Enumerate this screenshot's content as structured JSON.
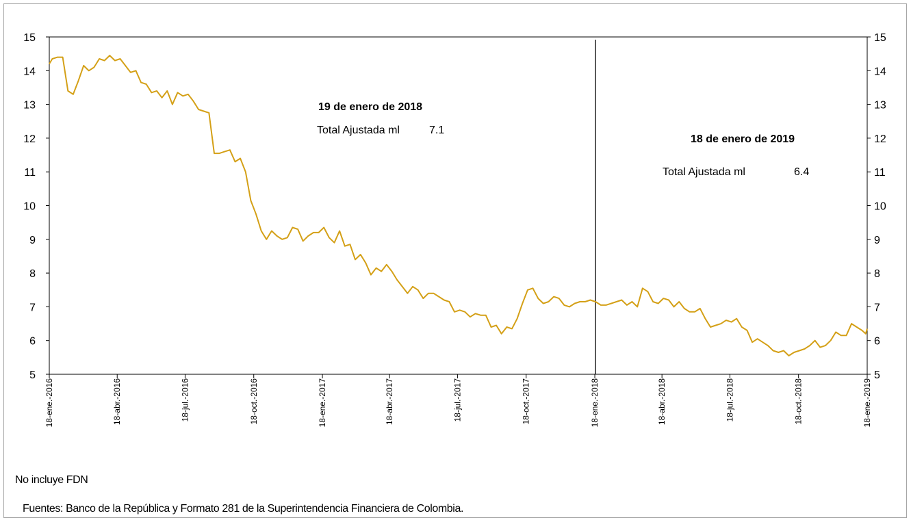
{
  "chart_data": {
    "type": "line",
    "ylim": [
      5,
      15
    ],
    "y_ticks": [
      5,
      6,
      7,
      8,
      9,
      10,
      11,
      12,
      13,
      14,
      15
    ],
    "x_start": "2016-01-18",
    "x_end": "2019-01-18",
    "x_tick_dates": [
      "2016-01-18",
      "2016-04-18",
      "2016-07-18",
      "2016-10-18",
      "2017-01-18",
      "2017-04-18",
      "2017-07-18",
      "2017-10-18",
      "2018-01-18",
      "2018-04-18",
      "2018-07-18",
      "2018-10-18",
      "2019-01-18"
    ],
    "x_tick_labels": [
      "18-ene.-2016",
      "18-abr.-2016",
      "18-jul.-2016",
      "18-oct.-2016",
      "18-ene.-2017",
      "18-abr.-2017",
      "18-jul.-2017",
      "18-oct.-2017",
      "18-ene.-2018",
      "18-abr.-2018",
      "18-jul.-2018",
      "18-oct.-2018",
      "18-ene.-2019"
    ],
    "line_color": "#d4a017",
    "grid": false,
    "series": [
      {
        "points": [
          [
            "2016-01-18",
            14.2
          ],
          [
            "2016-01-22",
            14.35
          ],
          [
            "2016-01-29",
            14.4
          ],
          [
            "2016-02-05",
            14.4
          ],
          [
            "2016-02-12",
            13.4
          ],
          [
            "2016-02-19",
            13.3
          ],
          [
            "2016-02-26",
            13.7
          ],
          [
            "2016-03-04",
            14.15
          ],
          [
            "2016-03-11",
            14.0
          ],
          [
            "2016-03-18",
            14.1
          ],
          [
            "2016-03-25",
            14.35
          ],
          [
            "2016-04-01",
            14.3
          ],
          [
            "2016-04-08",
            14.45
          ],
          [
            "2016-04-15",
            14.3
          ],
          [
            "2016-04-22",
            14.35
          ],
          [
            "2016-04-29",
            14.15
          ],
          [
            "2016-05-06",
            13.95
          ],
          [
            "2016-05-13",
            14.0
          ],
          [
            "2016-05-20",
            13.65
          ],
          [
            "2016-05-27",
            13.6
          ],
          [
            "2016-06-03",
            13.35
          ],
          [
            "2016-06-10",
            13.4
          ],
          [
            "2016-06-17",
            13.2
          ],
          [
            "2016-06-24",
            13.4
          ],
          [
            "2016-07-01",
            13.0
          ],
          [
            "2016-07-08",
            13.35
          ],
          [
            "2016-07-15",
            13.25
          ],
          [
            "2016-07-22",
            13.3
          ],
          [
            "2016-07-29",
            13.1
          ],
          [
            "2016-08-05",
            12.85
          ],
          [
            "2016-08-12",
            12.8
          ],
          [
            "2016-08-19",
            12.75
          ],
          [
            "2016-08-26",
            11.55
          ],
          [
            "2016-09-02",
            11.55
          ],
          [
            "2016-09-09",
            11.6
          ],
          [
            "2016-09-16",
            11.65
          ],
          [
            "2016-09-23",
            11.3
          ],
          [
            "2016-09-30",
            11.4
          ],
          [
            "2016-10-07",
            11.0
          ],
          [
            "2016-10-14",
            10.15
          ],
          [
            "2016-10-21",
            9.75
          ],
          [
            "2016-10-28",
            9.25
          ],
          [
            "2016-11-04",
            9.0
          ],
          [
            "2016-11-11",
            9.25
          ],
          [
            "2016-11-18",
            9.1
          ],
          [
            "2016-11-25",
            9.0
          ],
          [
            "2016-12-02",
            9.05
          ],
          [
            "2016-12-09",
            9.35
          ],
          [
            "2016-12-16",
            9.3
          ],
          [
            "2016-12-23",
            8.95
          ],
          [
            "2016-12-30",
            9.1
          ],
          [
            "2017-01-06",
            9.2
          ],
          [
            "2017-01-13",
            9.2
          ],
          [
            "2017-01-20",
            9.35
          ],
          [
            "2017-01-27",
            9.05
          ],
          [
            "2017-02-03",
            8.9
          ],
          [
            "2017-02-10",
            9.25
          ],
          [
            "2017-02-17",
            8.8
          ],
          [
            "2017-02-24",
            8.85
          ],
          [
            "2017-03-03",
            8.4
          ],
          [
            "2017-03-10",
            8.55
          ],
          [
            "2017-03-17",
            8.3
          ],
          [
            "2017-03-24",
            7.95
          ],
          [
            "2017-03-31",
            8.15
          ],
          [
            "2017-04-07",
            8.05
          ],
          [
            "2017-04-14",
            8.25
          ],
          [
            "2017-04-21",
            8.05
          ],
          [
            "2017-04-28",
            7.8
          ],
          [
            "2017-05-05",
            7.6
          ],
          [
            "2017-05-12",
            7.4
          ],
          [
            "2017-05-19",
            7.6
          ],
          [
            "2017-05-26",
            7.5
          ],
          [
            "2017-06-02",
            7.25
          ],
          [
            "2017-06-09",
            7.4
          ],
          [
            "2017-06-16",
            7.4
          ],
          [
            "2017-06-23",
            7.3
          ],
          [
            "2017-06-30",
            7.2
          ],
          [
            "2017-07-07",
            7.15
          ],
          [
            "2017-07-14",
            6.85
          ],
          [
            "2017-07-21",
            6.9
          ],
          [
            "2017-07-28",
            6.85
          ],
          [
            "2017-08-04",
            6.7
          ],
          [
            "2017-08-11",
            6.8
          ],
          [
            "2017-08-18",
            6.75
          ],
          [
            "2017-08-25",
            6.75
          ],
          [
            "2017-09-01",
            6.4
          ],
          [
            "2017-09-08",
            6.45
          ],
          [
            "2017-09-15",
            6.2
          ],
          [
            "2017-09-22",
            6.4
          ],
          [
            "2017-09-29",
            6.35
          ],
          [
            "2017-10-06",
            6.65
          ],
          [
            "2017-10-13",
            7.1
          ],
          [
            "2017-10-20",
            7.5
          ],
          [
            "2017-10-27",
            7.55
          ],
          [
            "2017-11-03",
            7.25
          ],
          [
            "2017-11-10",
            7.1
          ],
          [
            "2017-11-17",
            7.15
          ],
          [
            "2017-11-24",
            7.3
          ],
          [
            "2017-12-01",
            7.25
          ],
          [
            "2017-12-08",
            7.05
          ],
          [
            "2017-12-15",
            7.0
          ],
          [
            "2017-12-22",
            7.1
          ],
          [
            "2017-12-29",
            7.15
          ],
          [
            "2018-01-05",
            7.15
          ],
          [
            "2018-01-12",
            7.2
          ],
          [
            "2018-01-19",
            7.15
          ],
          [
            "2018-01-26",
            7.05
          ],
          [
            "2018-02-02",
            7.05
          ],
          [
            "2018-02-09",
            7.1
          ],
          [
            "2018-02-16",
            7.15
          ],
          [
            "2018-02-23",
            7.2
          ],
          [
            "2018-03-02",
            7.05
          ],
          [
            "2018-03-09",
            7.15
          ],
          [
            "2018-03-16",
            7.0
          ],
          [
            "2018-03-23",
            7.55
          ],
          [
            "2018-03-30",
            7.45
          ],
          [
            "2018-04-06",
            7.15
          ],
          [
            "2018-04-13",
            7.1
          ],
          [
            "2018-04-20",
            7.25
          ],
          [
            "2018-04-27",
            7.2
          ],
          [
            "2018-05-04",
            7.0
          ],
          [
            "2018-05-11",
            7.15
          ],
          [
            "2018-05-18",
            6.95
          ],
          [
            "2018-05-25",
            6.85
          ],
          [
            "2018-06-01",
            6.85
          ],
          [
            "2018-06-08",
            6.95
          ],
          [
            "2018-06-15",
            6.65
          ],
          [
            "2018-06-22",
            6.4
          ],
          [
            "2018-06-29",
            6.45
          ],
          [
            "2018-07-06",
            6.5
          ],
          [
            "2018-07-13",
            6.6
          ],
          [
            "2018-07-20",
            6.55
          ],
          [
            "2018-07-27",
            6.65
          ],
          [
            "2018-08-03",
            6.4
          ],
          [
            "2018-08-10",
            6.3
          ],
          [
            "2018-08-17",
            5.95
          ],
          [
            "2018-08-24",
            6.05
          ],
          [
            "2018-08-31",
            5.95
          ],
          [
            "2018-09-07",
            5.85
          ],
          [
            "2018-09-14",
            5.7
          ],
          [
            "2018-09-21",
            5.65
          ],
          [
            "2018-09-28",
            5.7
          ],
          [
            "2018-10-05",
            5.55
          ],
          [
            "2018-10-12",
            5.65
          ],
          [
            "2018-10-19",
            5.7
          ],
          [
            "2018-10-26",
            5.75
          ],
          [
            "2018-11-02",
            5.85
          ],
          [
            "2018-11-09",
            6.0
          ],
          [
            "2018-11-16",
            5.8
          ],
          [
            "2018-11-23",
            5.85
          ],
          [
            "2018-11-30",
            6.0
          ],
          [
            "2018-12-07",
            6.25
          ],
          [
            "2018-12-14",
            6.15
          ],
          [
            "2018-12-21",
            6.15
          ],
          [
            "2018-12-28",
            6.5
          ],
          [
            "2019-01-04",
            6.4
          ],
          [
            "2019-01-11",
            6.3
          ],
          [
            "2019-01-16",
            6.2
          ],
          [
            "2019-01-18",
            6.35
          ]
        ]
      }
    ],
    "vertical_marker_date": "2018-01-18",
    "annotations": [
      {
        "date_label": "19 de enero de 2018",
        "text": "Total Ajustada ml",
        "value": "7.1"
      },
      {
        "date_label": "18 de enero de 2019",
        "text": "Total Ajustada ml",
        "value": "6.4"
      }
    ]
  },
  "notes": {
    "exclusion": "No incluye FDN",
    "sources": "Fuentes: Banco de la República y Formato 281 de la Superintendencia Financiera de Colombia."
  }
}
